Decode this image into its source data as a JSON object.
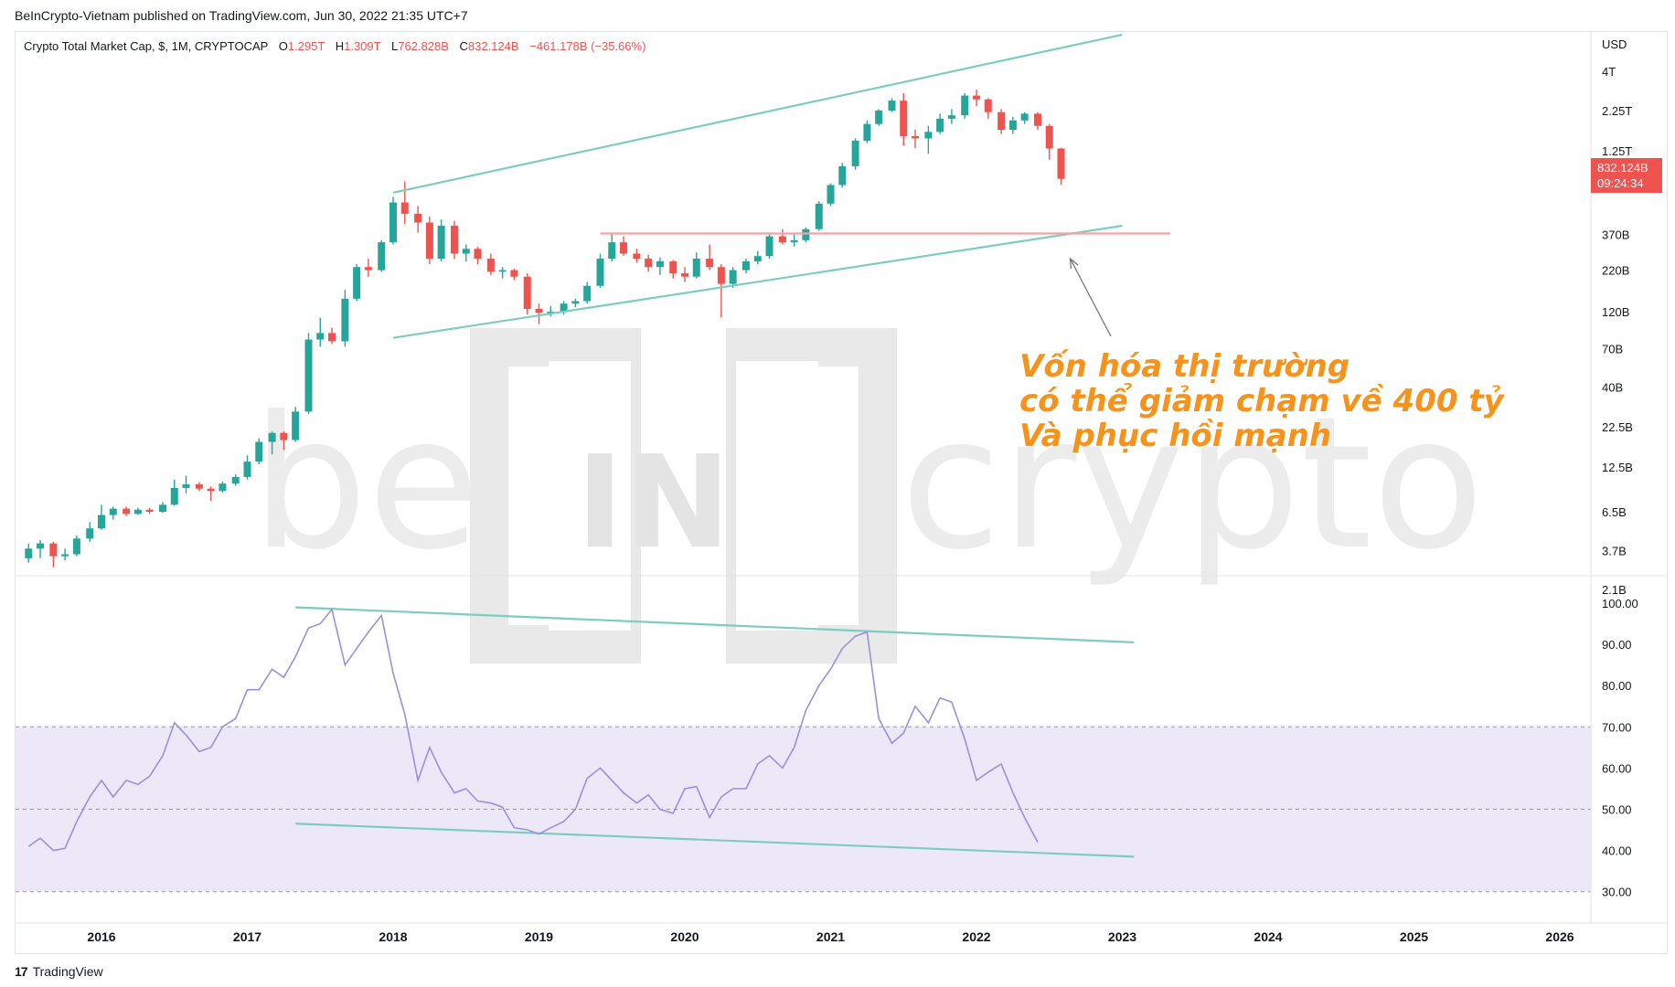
{
  "published": "BeInCrypto-Vietnam published on TradingView.com, Jun 30, 2022 21:35 UTC+7",
  "brand": {
    "icon": "tradingview-logo-icon",
    "name": "TradingView"
  },
  "watermark": {
    "left": "be",
    "middle": "IN",
    "right": "crypto"
  },
  "chart_data": {
    "type": "candlestick",
    "legend": {
      "symbol": "Crypto Total Market Cap, $, 1M, CRYPTOCAP",
      "O": "1.295T",
      "H": "1.309T",
      "L": "762.828B",
      "C": "832.124B",
      "change": "−461.178B (−35.66%)"
    },
    "currency": "USD",
    "scale": "log",
    "price_ticks": [
      "4T",
      "2.25T",
      "1.25T",
      "370B",
      "220B",
      "120B",
      "70B",
      "40B",
      "22.5B",
      "12.5B",
      "6.5B",
      "3.7B",
      "2.1B"
    ],
    "price_tick_values": [
      4000,
      2250,
      1250,
      370,
      220,
      120,
      70,
      40,
      22.5,
      12.5,
      6.5,
      3.7,
      2.1
    ],
    "last_price": {
      "value": "832.124B",
      "countdown": "09:24:34"
    },
    "x_ticks": [
      "2016",
      "2017",
      "2018",
      "2019",
      "2020",
      "2021",
      "2022",
      "2023",
      "2024",
      "2025",
      "2026"
    ],
    "candles": [
      {
        "t": 2015.5,
        "o": 3.3,
        "c": 3.8,
        "h": 4.1,
        "l": 3.1
      },
      {
        "t": 2015.58,
        "o": 3.8,
        "c": 4.1,
        "h": 4.3,
        "l": 3.3
      },
      {
        "t": 2015.67,
        "o": 4.1,
        "c": 3.4,
        "h": 4.2,
        "l": 2.9
      },
      {
        "t": 2015.75,
        "o": 3.4,
        "c": 3.5,
        "h": 3.8,
        "l": 3.2
      },
      {
        "t": 2015.83,
        "o": 3.5,
        "c": 4.4,
        "h": 4.6,
        "l": 3.4
      },
      {
        "t": 2015.92,
        "o": 4.4,
        "c": 5.1,
        "h": 5.6,
        "l": 4.2
      },
      {
        "t": 2016.0,
        "o": 5.1,
        "c": 6.2,
        "h": 7.2,
        "l": 5.0
      },
      {
        "t": 2016.08,
        "o": 6.2,
        "c": 6.8,
        "h": 7.0,
        "l": 5.8
      },
      {
        "t": 2016.17,
        "o": 6.8,
        "c": 6.3,
        "h": 7.0,
        "l": 6.1
      },
      {
        "t": 2016.25,
        "o": 6.3,
        "c": 6.7,
        "h": 6.9,
        "l": 6.2
      },
      {
        "t": 2016.33,
        "o": 6.7,
        "c": 6.5,
        "h": 6.9,
        "l": 6.3
      },
      {
        "t": 2016.42,
        "o": 6.5,
        "c": 7.2,
        "h": 7.5,
        "l": 6.4
      },
      {
        "t": 2016.5,
        "o": 7.2,
        "c": 9.2,
        "h": 10.4,
        "l": 7.1
      },
      {
        "t": 2016.58,
        "o": 9.2,
        "c": 9.7,
        "h": 11.0,
        "l": 8.5
      },
      {
        "t": 2016.67,
        "o": 9.7,
        "c": 9.1,
        "h": 10.0,
        "l": 8.8
      },
      {
        "t": 2016.75,
        "o": 9.1,
        "c": 8.8,
        "h": 9.4,
        "l": 7.6
      },
      {
        "t": 2016.83,
        "o": 8.8,
        "c": 9.8,
        "h": 10.1,
        "l": 8.6
      },
      {
        "t": 2016.92,
        "o": 9.8,
        "c": 10.8,
        "h": 11.2,
        "l": 9.5
      },
      {
        "t": 2017.0,
        "o": 10.8,
        "c": 13.5,
        "h": 14.8,
        "l": 10.4
      },
      {
        "t": 2017.08,
        "o": 13.5,
        "c": 18.0,
        "h": 19.0,
        "l": 13.0
      },
      {
        "t": 2017.17,
        "o": 18.0,
        "c": 20.5,
        "h": 21.0,
        "l": 15.0
      },
      {
        "t": 2017.25,
        "o": 20.5,
        "c": 18.5,
        "h": 21.0,
        "l": 16.0
      },
      {
        "t": 2017.33,
        "o": 18.5,
        "c": 28.0,
        "h": 30.0,
        "l": 18.0
      },
      {
        "t": 2017.42,
        "o": 28.0,
        "c": 80.0,
        "h": 88.0,
        "l": 27.0
      },
      {
        "t": 2017.5,
        "o": 80.0,
        "c": 88.0,
        "h": 110.0,
        "l": 72.0
      },
      {
        "t": 2017.58,
        "o": 88.0,
        "c": 78.0,
        "h": 95.0,
        "l": 75.0
      },
      {
        "t": 2017.67,
        "o": 78.0,
        "c": 145.0,
        "h": 165.0,
        "l": 72.0
      },
      {
        "t": 2017.75,
        "o": 145.0,
        "c": 230.0,
        "h": 240.0,
        "l": 140.0
      },
      {
        "t": 2017.83,
        "o": 230.0,
        "c": 220.0,
        "h": 260.0,
        "l": 200.0
      },
      {
        "t": 2017.92,
        "o": 220.0,
        "c": 330.0,
        "h": 340.0,
        "l": 215.0
      },
      {
        "t": 2018.0,
        "o": 330.0,
        "c": 590.0,
        "h": 640.0,
        "l": 320.0
      },
      {
        "t": 2018.08,
        "o": 590.0,
        "c": 500.0,
        "h": 800.0,
        "l": 430.0
      },
      {
        "t": 2018.17,
        "o": 500.0,
        "c": 440.0,
        "h": 560.0,
        "l": 380.0
      },
      {
        "t": 2018.25,
        "o": 440.0,
        "c": 260.0,
        "h": 480.0,
        "l": 240.0
      },
      {
        "t": 2018.33,
        "o": 260.0,
        "c": 420.0,
        "h": 460.0,
        "l": 250.0
      },
      {
        "t": 2018.42,
        "o": 420.0,
        "c": 280.0,
        "h": 450.0,
        "l": 260.0
      },
      {
        "t": 2018.5,
        "o": 280.0,
        "c": 300.0,
        "h": 320.0,
        "l": 250.0
      },
      {
        "t": 2018.58,
        "o": 300.0,
        "c": 260.0,
        "h": 310.0,
        "l": 240.0
      },
      {
        "t": 2018.67,
        "o": 260.0,
        "c": 215.0,
        "h": 280.0,
        "l": 205.0
      },
      {
        "t": 2018.75,
        "o": 215.0,
        "c": 220.0,
        "h": 230.0,
        "l": 195.0
      },
      {
        "t": 2018.83,
        "o": 220.0,
        "c": 200.0,
        "h": 225.0,
        "l": 190.0
      },
      {
        "t": 2018.92,
        "o": 200.0,
        "c": 125.0,
        "h": 210.0,
        "l": 115.0
      },
      {
        "t": 2019.0,
        "o": 125.0,
        "c": 118.0,
        "h": 135.0,
        "l": 100.0
      },
      {
        "t": 2019.08,
        "o": 118.0,
        "c": 120.0,
        "h": 130.0,
        "l": 112.0
      },
      {
        "t": 2019.17,
        "o": 120.0,
        "c": 135.0,
        "h": 140.0,
        "l": 115.0
      },
      {
        "t": 2019.25,
        "o": 135.0,
        "c": 140.0,
        "h": 145.0,
        "l": 128.0
      },
      {
        "t": 2019.33,
        "o": 140.0,
        "c": 175.0,
        "h": 185.0,
        "l": 135.0
      },
      {
        "t": 2019.42,
        "o": 175.0,
        "c": 260.0,
        "h": 280.0,
        "l": 170.0
      },
      {
        "t": 2019.5,
        "o": 260.0,
        "c": 330.0,
        "h": 380.0,
        "l": 250.0
      },
      {
        "t": 2019.58,
        "o": 330.0,
        "c": 280.0,
        "h": 360.0,
        "l": 270.0
      },
      {
        "t": 2019.67,
        "o": 280.0,
        "c": 260.0,
        "h": 300.0,
        "l": 245.0
      },
      {
        "t": 2019.75,
        "o": 260.0,
        "c": 230.0,
        "h": 275.0,
        "l": 215.0
      },
      {
        "t": 2019.83,
        "o": 230.0,
        "c": 250.0,
        "h": 265.0,
        "l": 205.0
      },
      {
        "t": 2019.92,
        "o": 250.0,
        "c": 210.0,
        "h": 255.0,
        "l": 195.0
      },
      {
        "t": 2020.0,
        "o": 210.0,
        "c": 200.0,
        "h": 230.0,
        "l": 185.0
      },
      {
        "t": 2020.08,
        "o": 200.0,
        "c": 260.0,
        "h": 285.0,
        "l": 195.0
      },
      {
        "t": 2020.17,
        "o": 260.0,
        "c": 230.0,
        "h": 320.0,
        "l": 220.0
      },
      {
        "t": 2020.25,
        "o": 230.0,
        "c": 180.0,
        "h": 240.0,
        "l": 110.0
      },
      {
        "t": 2020.33,
        "o": 180.0,
        "c": 220.0,
        "h": 230.0,
        "l": 170.0
      },
      {
        "t": 2020.42,
        "o": 220.0,
        "c": 250.0,
        "h": 260.0,
        "l": 210.0
      },
      {
        "t": 2020.5,
        "o": 250.0,
        "c": 270.0,
        "h": 290.0,
        "l": 240.0
      },
      {
        "t": 2020.58,
        "o": 270.0,
        "c": 360.0,
        "h": 380.0,
        "l": 260.0
      },
      {
        "t": 2020.67,
        "o": 360.0,
        "c": 330.0,
        "h": 400.0,
        "l": 320.0
      },
      {
        "t": 2020.75,
        "o": 330.0,
        "c": 340.0,
        "h": 370.0,
        "l": 310.0
      },
      {
        "t": 2020.83,
        "o": 340.0,
        "c": 400.0,
        "h": 410.0,
        "l": 330.0
      },
      {
        "t": 2020.92,
        "o": 400.0,
        "c": 580.0,
        "h": 600.0,
        "l": 390.0
      },
      {
        "t": 2021.0,
        "o": 580.0,
        "c": 760.0,
        "h": 780.0,
        "l": 560.0
      },
      {
        "t": 2021.08,
        "o": 760.0,
        "c": 1000.0,
        "h": 1050.0,
        "l": 730.0
      },
      {
        "t": 2021.17,
        "o": 1000.0,
        "c": 1450.0,
        "h": 1500.0,
        "l": 950.0
      },
      {
        "t": 2021.25,
        "o": 1450.0,
        "c": 1850.0,
        "h": 1950.0,
        "l": 1400.0
      },
      {
        "t": 2021.33,
        "o": 1850.0,
        "c": 2250.0,
        "h": 2300.0,
        "l": 1800.0
      },
      {
        "t": 2021.42,
        "o": 2250.0,
        "c": 2600.0,
        "h": 2700.0,
        "l": 2200.0
      },
      {
        "t": 2021.5,
        "o": 2600.0,
        "c": 1550.0,
        "h": 2900.0,
        "l": 1350.0
      },
      {
        "t": 2021.58,
        "o": 1550.0,
        "c": 1500.0,
        "h": 1700.0,
        "l": 1300.0
      },
      {
        "t": 2021.67,
        "o": 1500.0,
        "c": 1650.0,
        "h": 1800.0,
        "l": 1200.0
      },
      {
        "t": 2021.75,
        "o": 1650.0,
        "c": 2000.0,
        "h": 2150.0,
        "l": 1600.0
      },
      {
        "t": 2021.83,
        "o": 2000.0,
        "c": 2100.0,
        "h": 2300.0,
        "l": 1850.0
      },
      {
        "t": 2021.92,
        "o": 2100.0,
        "c": 2800.0,
        "h": 2900.0,
        "l": 2000.0
      },
      {
        "t": 2022.0,
        "o": 2800.0,
        "c": 2650.0,
        "h": 3050.0,
        "l": 2400.0
      },
      {
        "t": 2022.08,
        "o": 2650.0,
        "c": 2200.0,
        "h": 2700.0,
        "l": 2000.0
      },
      {
        "t": 2022.17,
        "o": 2200.0,
        "c": 1700.0,
        "h": 2300.0,
        "l": 1600.0
      },
      {
        "t": 2022.25,
        "o": 1700.0,
        "c": 1950.0,
        "h": 2050.0,
        "l": 1600.0
      },
      {
        "t": 2022.33,
        "o": 1950.0,
        "c": 2150.0,
        "h": 2200.0,
        "l": 1850.0
      },
      {
        "t": 2022.42,
        "o": 2150.0,
        "c": 1800.0,
        "h": 2200.0,
        "l": 1700.0
      },
      {
        "t": 2022.5,
        "o": 1800.0,
        "c": 1295.0,
        "h": 1850.0,
        "l": 1100.0
      },
      {
        "t": 2022.58,
        "o": 1295.0,
        "c": 832.0,
        "h": 1309.0,
        "l": 763.0
      }
    ],
    "rsi": {
      "ticks": [
        "100.00",
        "90.00",
        "80.00",
        "70.00",
        "60.00",
        "50.00",
        "40.00",
        "30.00"
      ],
      "tick_values": [
        100,
        90,
        80,
        70,
        60,
        50,
        40,
        30
      ],
      "upper_band": 70,
      "lower_band": 30,
      "mid": 50,
      "points": [
        [
          2015.5,
          41
        ],
        [
          2015.58,
          43
        ],
        [
          2015.67,
          40
        ],
        [
          2015.75,
          40.5
        ],
        [
          2015.83,
          47
        ],
        [
          2015.92,
          53
        ],
        [
          2016.0,
          57
        ],
        [
          2016.08,
          53
        ],
        [
          2016.17,
          57
        ],
        [
          2016.25,
          56
        ],
        [
          2016.33,
          58
        ],
        [
          2016.42,
          63
        ],
        [
          2016.5,
          71
        ],
        [
          2016.58,
          68
        ],
        [
          2016.67,
          64
        ],
        [
          2016.75,
          65
        ],
        [
          2016.83,
          70
        ],
        [
          2016.92,
          72
        ],
        [
          2017.0,
          79
        ],
        [
          2017.08,
          79
        ],
        [
          2017.17,
          84
        ],
        [
          2017.25,
          82
        ],
        [
          2017.33,
          87
        ],
        [
          2017.42,
          94
        ],
        [
          2017.5,
          95
        ],
        [
          2017.58,
          98.5
        ],
        [
          2017.67,
          85
        ],
        [
          2017.75,
          89
        ],
        [
          2017.83,
          93
        ],
        [
          2017.92,
          97
        ],
        [
          2018.0,
          83
        ],
        [
          2018.08,
          73
        ],
        [
          2018.17,
          57
        ],
        [
          2018.25,
          65
        ],
        [
          2018.33,
          59
        ],
        [
          2018.42,
          54
        ],
        [
          2018.5,
          55
        ],
        [
          2018.58,
          52
        ],
        [
          2018.67,
          51.5
        ],
        [
          2018.75,
          50.5
        ],
        [
          2018.83,
          45.5
        ],
        [
          2018.92,
          45
        ],
        [
          2019.0,
          44
        ],
        [
          2019.08,
          45.5
        ],
        [
          2019.17,
          47
        ],
        [
          2019.25,
          50
        ],
        [
          2019.33,
          57.5
        ],
        [
          2019.42,
          60
        ],
        [
          2019.5,
          57
        ],
        [
          2019.58,
          54
        ],
        [
          2019.67,
          51.5
        ],
        [
          2019.75,
          53.5
        ],
        [
          2019.83,
          50
        ],
        [
          2019.92,
          49
        ],
        [
          2020.0,
          55
        ],
        [
          2020.08,
          55.5
        ],
        [
          2020.17,
          48
        ],
        [
          2020.25,
          53
        ],
        [
          2020.33,
          55
        ],
        [
          2020.42,
          55
        ],
        [
          2020.5,
          61
        ],
        [
          2020.58,
          63
        ],
        [
          2020.67,
          60
        ],
        [
          2020.75,
          65
        ],
        [
          2020.83,
          74
        ],
        [
          2020.92,
          80
        ],
        [
          2021.0,
          84
        ],
        [
          2021.08,
          89
        ],
        [
          2021.17,
          92
        ],
        [
          2021.25,
          93
        ],
        [
          2021.33,
          72
        ],
        [
          2021.42,
          66
        ],
        [
          2021.5,
          68.5
        ],
        [
          2021.58,
          75
        ],
        [
          2021.67,
          71
        ],
        [
          2021.75,
          77
        ],
        [
          2021.83,
          76
        ],
        [
          2021.92,
          67
        ],
        [
          2022.0,
          57
        ],
        [
          2022.08,
          59
        ],
        [
          2022.17,
          61
        ],
        [
          2022.25,
          54
        ],
        [
          2022.33,
          48
        ],
        [
          2022.42,
          42
        ]
      ]
    },
    "trendlines": [
      {
        "name": "channel-upper",
        "from": [
          2018.0,
          680
        ],
        "to": [
          2023.0,
          6800
        ]
      },
      {
        "name": "channel-lower",
        "from": [
          2018.0,
          82
        ],
        "to": [
          2023.0,
          420
        ]
      },
      {
        "name": "support-level",
        "from": [
          2019.42,
          375
        ],
        "to": [
          2023.33,
          375
        ]
      },
      {
        "name": "rsi-upper",
        "from": [
          2017.33,
          99
        ],
        "to": [
          2023.08,
          90.5
        ]
      },
      {
        "name": "rsi-lower",
        "from": [
          2017.33,
          46.5
        ],
        "to": [
          2023.08,
          38.5
        ]
      }
    ],
    "annotation": {
      "lines": [
        "Vốn hóa thị trường",
        "có thể giảm chạm về 400 tỷ",
        "Và phục hồi mạnh"
      ],
      "arrow_to": [
        2022.58,
        260
      ]
    },
    "colors": {
      "up": "#26a69a",
      "down": "#ef5350",
      "trend": "#7dcdbf",
      "support": "#f5a3a6",
      "rsi": "#9c8fdb",
      "rsi_band": "#ede8f8",
      "annotation": "#f7931a",
      "watermark": "#e9e9e9"
    }
  }
}
